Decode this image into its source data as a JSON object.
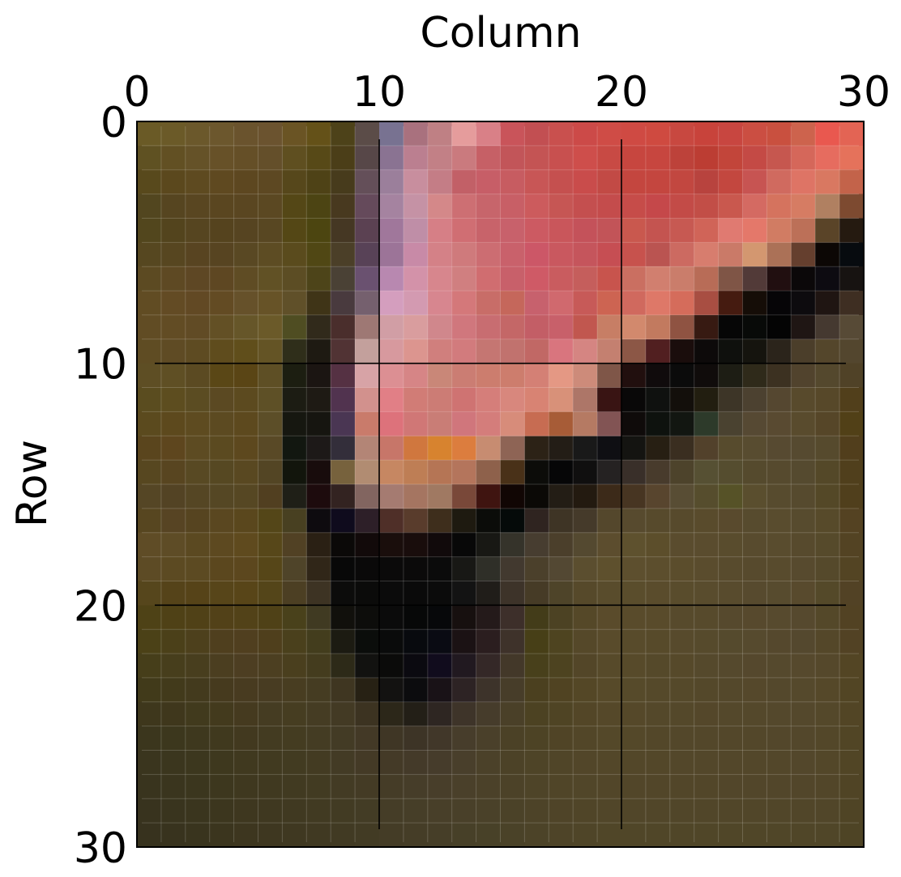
{
  "chart_data": {
    "type": "heatmap",
    "title": "",
    "xlabel": "Column",
    "ylabel": "Row",
    "x_axis_position": "top",
    "xlim": [
      0,
      30
    ],
    "ylim": [
      30,
      0
    ],
    "xticks": [
      0,
      10,
      20,
      30
    ],
    "yticks": [
      0,
      10,
      20,
      30
    ],
    "grid": true,
    "grid_color": "#000000",
    "minor_grid_step": 1,
    "major_grid_step": 10,
    "rows": 30,
    "cols": 30,
    "colors": [
      [
        "#6a5a26",
        "#6b5a28",
        "#6b582b",
        "#6c572d",
        "#6a532d",
        "#6b532f",
        "#6a5424",
        "#645118",
        "#4d4219",
        "#5b4c48",
        "#787291",
        "#a9717e",
        "#bf8084",
        "#e59c9c",
        "#d98087",
        "#c9545a",
        "#c24f52",
        "#c9504e",
        "#cc4a48",
        "#cf4c46",
        "#cf4a43",
        "#cf4a40",
        "#c84840",
        "#c8433b",
        "#c84640",
        "#cb4e42",
        "#c9503f",
        "#cd634d",
        "#e9584f",
        "#e36454"
      ],
      [
        "#5f5122",
        "#625023",
        "#655228",
        "#675128",
        "#654f27",
        "#644f2a",
        "#5f4f20",
        "#574917",
        "#4b3e18",
        "#574748",
        "#8a7392",
        "#bb7f90",
        "#c28086",
        "#ca7a7e",
        "#c66066",
        "#c25559",
        "#c45454",
        "#c8504f",
        "#ce4e4b",
        "#c84a44",
        "#c7463f",
        "#c7463f",
        "#bd423a",
        "#bc3d33",
        "#c2453a",
        "#c44a45",
        "#c6574f",
        "#d5675a",
        "#e66c5f",
        "#e5725b"
      ],
      [
        "#58491c",
        "#5b481d",
        "#5e4a20",
        "#5f4920",
        "#5d4720",
        "#5d4822",
        "#56471b",
        "#4e4216",
        "#473b1c",
        "#644f59",
        "#9b7f9b",
        "#c88e9e",
        "#c47d86",
        "#c26067",
        "#c75e67",
        "#c75c61",
        "#c85656",
        "#c5504f",
        "#c94c4b",
        "#c24a45",
        "#c4463f",
        "#c4463f",
        "#c24740",
        "#b8433e",
        "#c3473f",
        "#c75452",
        "#d06a5f",
        "#de7465",
        "#d97861",
        "#c3634a"
      ],
      [
        "#52461f",
        "#564520",
        "#594621",
        "#5a4620",
        "#5a4621",
        "#5b4822",
        "#544716",
        "#4c4413",
        "#48391f",
        "#654a5b",
        "#a583a0",
        "#c592a5",
        "#d48889",
        "#cd6f73",
        "#c7656b",
        "#c85f66",
        "#cc5b5d",
        "#c65654",
        "#c44f4f",
        "#c44c4c",
        "#c64c49",
        "#c5484a",
        "#c34b47",
        "#c24e47",
        "#c9584e",
        "#d46a62",
        "#d5735e",
        "#d67c63",
        "#b08061",
        "#7d4a30"
      ],
      [
        "#52461d",
        "#53441d",
        "#564520",
        "#55431e",
        "#564421",
        "#584722",
        "#544715",
        "#4c4510",
        "#453723",
        "#5b4152",
        "#a0779b",
        "#bf8ea7",
        "#d67f86",
        "#d06e73",
        "#c8636a",
        "#c8616b",
        "#cc5a62",
        "#c9565b",
        "#c4525a",
        "#c25458",
        "#c9584e",
        "#c45450",
        "#c75952",
        "#d06458",
        "#e07a71",
        "#e4786a",
        "#d17c63",
        "#bc7058",
        "#5a4428",
        "#251a10"
      ],
      [
        "#564720",
        "#574620",
        "#584421",
        "#574421",
        "#594823",
        "#5d4c23",
        "#5a4b1d",
        "#504714",
        "#4b3f28",
        "#584257",
        "#9c7498",
        "#c88aa7",
        "#d48187",
        "#cf7a7c",
        "#cc6d72",
        "#c9616b",
        "#cc5767",
        "#c9585f",
        "#c5555c",
        "#c64e53",
        "#c7524d",
        "#ba5451",
        "#cc6a61",
        "#d77d6e",
        "#ca7a68",
        "#d39770",
        "#ab7157",
        "#653f2e",
        "#0c0705",
        "#070b0f"
      ],
      [
        "#5c4a22",
        "#5e4923",
        "#5e4724",
        "#5e4722",
        "#5f4c24",
        "#615125",
        "#5c4d24",
        "#4d4419",
        "#4a4135",
        "#6a5170",
        "#b888b0",
        "#d392a9",
        "#d7868d",
        "#d07f80",
        "#d06d70",
        "#c8606a",
        "#cf5a66",
        "#c95c5f",
        "#c55e5c",
        "#c8544d",
        "#ca6f61",
        "#d17f6f",
        "#ca7d6b",
        "#b86c57",
        "#7f5546",
        "#523a38",
        "#210f10",
        "#0b0809",
        "#0d0b11",
        "#171311"
      ],
      [
        "#614c23",
        "#634b24",
        "#624924",
        "#634b23",
        "#66512a",
        "#675327",
        "#605029",
        "#3f3417",
        "#493a3e",
        "#75606e",
        "#d49ebe",
        "#d39ab1",
        "#d7868f",
        "#d4787a",
        "#c86d68",
        "#c5675b",
        "#c7616d",
        "#d0696e",
        "#c75a58",
        "#cd6452",
        "#d0695e",
        "#de7868",
        "#d56c5b",
        "#a84e42",
        "#451b10",
        "#150d07",
        "#060507",
        "#0d0b0e",
        "#1f1512",
        "#3e2e22"
      ],
      [
        "#614c24",
        "#624c24",
        "#614b25",
        "#635025",
        "#665629",
        "#6b5a29",
        "#4f4d22",
        "#312a1b",
        "#4a2e2c",
        "#9e7874",
        "#d19ea5",
        "#d99d9e",
        "#d0878c",
        "#d0777d",
        "#c86d71",
        "#c46767",
        "#c35e66",
        "#c8606a",
        "#c1574f",
        "#c77e65",
        "#d2896d",
        "#c27a5f",
        "#8f5342",
        "#371a12",
        "#060606",
        "#080a08",
        "#040404",
        "#1f1614",
        "#453930",
        "#574a36"
      ],
      [
        "#5f4c23",
        "#5f4b24",
        "#5e4b22",
        "#5f4c1d",
        "#604e1b",
        "#645425",
        "#2f2e1a",
        "#1e1a12",
        "#513334",
        "#c3a09c",
        "#d7999e",
        "#dc958f",
        "#d07f7d",
        "#d27b7d",
        "#c57672",
        "#c1726e",
        "#c16865",
        "#d9757e",
        "#d58582",
        "#c48070",
        "#8c5746",
        "#511f20",
        "#1a0d0c",
        "#0d0a0a",
        "#0f100d",
        "#15140e",
        "#2b241b",
        "#4b3e2a",
        "#54462b",
        "#53462e"
      ],
      [
        "#5e4e24",
        "#5f4f24",
        "#5b4a22",
        "#5a4716",
        "#5a4515",
        "#5e4f25",
        "#1c1e11",
        "#1b1512",
        "#553143",
        "#d7a3a6",
        "#dc8f93",
        "#d68586",
        "#c98778",
        "#cb7d73",
        "#cc7d6e",
        "#cd7d6d",
        "#d48075",
        "#e49884",
        "#cd8b7a",
        "#7f5648",
        "#210f0e",
        "#100b0c",
        "#0b0b0b",
        "#100c0b",
        "#1d1d14",
        "#2f2a1a",
        "#3c3121",
        "#51432d",
        "#54482d",
        "#504227"
      ],
      [
        "#5a4c1f",
        "#5d4d1f",
        "#5b4c22",
        "#5b4922",
        "#5c4a1f",
        "#5e5026",
        "#1c1c13",
        "#1e1a14",
        "#51334f",
        "#d2918d",
        "#e17f86",
        "#d17c76",
        "#cc7c75",
        "#cf7372",
        "#d57e7a",
        "#d8877d",
        "#d88373",
        "#d89179",
        "#ad7668",
        "#391413",
        "#090808",
        "#0f110f",
        "#130f0b",
        "#221e10",
        "#3d3527",
        "#4c4130",
        "#554730",
        "#584a2c",
        "#574829",
        "#513f1b"
      ],
      [
        "#5b4a1e",
        "#5d491d",
        "#5e4b20",
        "#5c4a21",
        "#5d491e",
        "#5c4e28",
        "#161710",
        "#161510",
        "#4a3653",
        "#c97b6b",
        "#dd727b",
        "#d07776",
        "#c97d76",
        "#d0767c",
        "#d47d7b",
        "#d78c7a",
        "#c76c52",
        "#a75c37",
        "#b57a63",
        "#825454",
        "#0f0b0a",
        "#0e120e",
        "#121611",
        "#2d3a2a",
        "#4a4230",
        "#564933",
        "#594a31",
        "#594b2d",
        "#564628",
        "#514017"
      ],
      [
        "#5a451d",
        "#5e461e",
        "#5d4b22",
        "#5b4a20",
        "#5d481e",
        "#594926",
        "#121710",
        "#1d1918",
        "#332e3a",
        "#b38576",
        "#c77669",
        "#d0773e",
        "#d7832f",
        "#dc7d3e",
        "#c78c71",
        "#8e6455",
        "#2c2216",
        "#231d16",
        "#191919",
        "#0f0f13",
        "#141411",
        "#271f13",
        "#3a2e20",
        "#52412b",
        "#574b2d",
        "#584c30",
        "#574a31",
        "#564a30",
        "#564a2d",
        "#513e1c"
      ],
      [
        "#574720",
        "#584520",
        "#584923",
        "#564822",
        "#594821",
        "#534524",
        "#12150c",
        "#180c0c",
        "#77623d",
        "#b18c72",
        "#c68762",
        "#be7e55",
        "#b57555",
        "#b4755c",
        "#8e614b",
        "#493118",
        "#0c0c09",
        "#060607",
        "#100f0f",
        "#252222",
        "#392f29",
        "#483b2c",
        "#4d432b",
        "#565033",
        "#554d2f",
        "#554a2d",
        "#564a2e",
        "#554a2f",
        "#544828",
        "#503f1c"
      ],
      [
        "#554625",
        "#534324",
        "#554624",
        "#554724",
        "#564723",
        "#513f20",
        "#1f1f17",
        "#1d0b0d",
        "#332321",
        "#826560",
        "#a57b71",
        "#a57561",
        "#a07962",
        "#794839",
        "#3f1410",
        "#110604",
        "#0b0906",
        "#231d15",
        "#231a10",
        "#3c2a19",
        "#473522",
        "#58452e",
        "#584d34",
        "#564d2d",
        "#565227",
        "#5a4e2e",
        "#574b2e",
        "#564a2e",
        "#544827",
        "#503f1c"
      ],
      [
        "#574620",
        "#574423",
        "#564420",
        "#5a4720",
        "#5a471d",
        "#544618",
        "#484021",
        "#0e0b0f",
        "#0f0b1d",
        "#2d1f28",
        "#4f2f28",
        "#593c2c",
        "#3e2e1c",
        "#1e1a10",
        "#0b0c09",
        "#050a09",
        "#2f2420",
        "#3e3425",
        "#453a2a",
        "#54472c",
        "#574a2e",
        "#574a2c",
        "#574a2c",
        "#594b2c",
        "#594a2d",
        "#574b2e",
        "#594c2e",
        "#574b2e",
        "#574a2a",
        "#544222"
      ],
      [
        "#5f4c26",
        "#5e4c26",
        "#5b4921",
        "#5d4920",
        "#5f4a1e",
        "#574719",
        "#514124",
        "#2a2014",
        "#0b0908",
        "#120a0a",
        "#1a0e0c",
        "#190d0c",
        "#110a0b",
        "#080808",
        "#181814",
        "#35332a",
        "#473d30",
        "#4b3f2b",
        "#544930",
        "#5c4d2e",
        "#5e512e",
        "#5c4e2b",
        "#5a4c2e",
        "#5a4c2e",
        "#594c2d",
        "#584b2e",
        "#594c2e",
        "#574a2d",
        "#564a2b",
        "#534323"
      ],
      [
        "#5d4b25",
        "#5c4a22",
        "#5c4a22",
        "#5b471e",
        "#5c471e",
        "#564618",
        "#4f4429",
        "#302618",
        "#080808",
        "#0a0909",
        "#0b0a0a",
        "#0b0a0a",
        "#0b0b0b",
        "#181815",
        "#2f2f28",
        "#42392f",
        "#4b402b",
        "#534833",
        "#5b4e2f",
        "#5e502d",
        "#5d4f2e",
        "#5c4e2d",
        "#5b4d2c",
        "#5a4c2d",
        "#584b2d",
        "#574a2d",
        "#584b2d",
        "#574a2e",
        "#55492b",
        "#534423"
      ],
      [
        "#56461c",
        "#554319",
        "#564318",
        "#574519",
        "#584518",
        "#544519",
        "#4c3f23",
        "#3d3323",
        "#0c0c0b",
        "#0b0b0a",
        "#0b0b0b",
        "#0a0a0a",
        "#0b0b0b",
        "#131313",
        "#201d19",
        "#3d3329",
        "#463b26",
        "#4e4429",
        "#56492a",
        "#594c2c",
        "#5a4d2c",
        "#5a4c2c",
        "#594c2c",
        "#594c2d",
        "#584b2d",
        "#574a2e",
        "#574b2e",
        "#584a2d",
        "#544929",
        "#524225"
      ],
      [
        "#4e4216",
        "#4f4116",
        "#504117",
        "#524118",
        "#524218",
        "#4f4117",
        "#49411b",
        "#403a22",
        "#11100c",
        "#0d0d0b",
        "#0b0b0b",
        "#070808",
        "#07080a",
        "#17100f",
        "#241a1a",
        "#3d2f2a",
        "#433c19",
        "#4c4223",
        "#554828",
        "#5a4b2b",
        "#594b2b",
        "#594b2b",
        "#574a2c",
        "#574a2c",
        "#56492d",
        "#57492d",
        "#574a2e",
        "#56492e",
        "#544829",
        "#524223"
      ],
      [
        "#4b4117",
        "#4b4019",
        "#4d401c",
        "#4f3f1e",
        "#503f1f",
        "#4f3f1c",
        "#4a401c",
        "#433d1d",
        "#1c1b12",
        "#0b0d0b",
        "#0a0b0b",
        "#080a0e",
        "#0a0b13",
        "#1b1214",
        "#2b1e1f",
        "#3e322a",
        "#473f17",
        "#4e4420",
        "#554829",
        "#594b2b",
        "#584b2b",
        "#574a2a",
        "#574a2c",
        "#564a2c",
        "#554a2d",
        "#564a2e",
        "#55482d",
        "#54482e",
        "#544729",
        "#524224"
      ],
      [
        "#463e1a",
        "#473e1c",
        "#483e1e",
        "#4b3e20",
        "#4d3e22",
        "#4c3f21",
        "#4a3f1e",
        "#443c1e",
        "#2d2a18",
        "#121210",
        "#0b0b0a",
        "#0b0a10",
        "#110c1d",
        "#211920",
        "#342827",
        "#433829",
        "#48401b",
        "#4d4320",
        "#534628",
        "#574a2a",
        "#574a2a",
        "#55492a",
        "#56492a",
        "#55492c",
        "#55492d",
        "#55482d",
        "#55492d",
        "#56492d",
        "#55482b",
        "#534524"
      ],
      [
        "#413a1a",
        "#423a1b",
        "#433a1d",
        "#463a1e",
        "#483b20",
        "#483c22",
        "#483d21",
        "#453c22",
        "#3f3621",
        "#272114",
        "#131211",
        "#0c0c0e",
        "#191217",
        "#2d2324",
        "#3d332a",
        "#473d29",
        "#4b401f",
        "#504322",
        "#544726",
        "#574a29",
        "#564a2a",
        "#55492a",
        "#55492a",
        "#54482a",
        "#54482b",
        "#55482b",
        "#54482c",
        "#55492c",
        "#554829",
        "#524524"
      ],
      [
        "#3e371c",
        "#3f371c",
        "#413a1d",
        "#433a1d",
        "#453a1f",
        "#453c22",
        "#463d21",
        "#453c23",
        "#433a24",
        "#3c3321",
        "#2c2719",
        "#231f17",
        "#2e2622",
        "#3e3429",
        "#463c2b",
        "#4a4028",
        "#4c4222",
        "#4f4424",
        "#534627",
        "#554829",
        "#554829",
        "#54482a",
        "#54482a",
        "#54472a",
        "#54482b",
        "#54482b",
        "#54482c",
        "#54482c",
        "#54482a",
        "#524525"
      ],
      [
        "#3b361d",
        "#3c371d",
        "#3e381e",
        "#40391e",
        "#42391f",
        "#433b21",
        "#443c21",
        "#443c23",
        "#433b25",
        "#433926",
        "#3f3625",
        "#3d3426",
        "#413729",
        "#473d2b",
        "#4a402a",
        "#4b4126",
        "#4d4325",
        "#504426",
        "#524628",
        "#544829",
        "#544829",
        "#534729",
        "#53472a",
        "#53472a",
        "#53472a",
        "#53472a",
        "#53472b",
        "#53472b",
        "#534729",
        "#514525"
      ],
      [
        "#3a351e",
        "#3b361e",
        "#3c371e",
        "#3e381e",
        "#40391f",
        "#413a20",
        "#423b21",
        "#433b22",
        "#433b25",
        "#443a26",
        "#443a27",
        "#443a29",
        "#463c2b",
        "#493f2b",
        "#4b4129",
        "#4c4227",
        "#4e4427",
        "#504528",
        "#524629",
        "#534729",
        "#534729",
        "#534729",
        "#53472a",
        "#53472a",
        "#53472a",
        "#53472a",
        "#53472a",
        "#53472b",
        "#534729",
        "#514525"
      ],
      [
        "#39341e",
        "#3a351e",
        "#3b361e",
        "#3d371e",
        "#3f381f",
        "#403920",
        "#413a21",
        "#423b22",
        "#433b24",
        "#443b25",
        "#453c27",
        "#463d29",
        "#483e2a",
        "#4a402a",
        "#4b4129",
        "#4c4228",
        "#4e4428",
        "#504528",
        "#514629",
        "#524629",
        "#524629",
        "#524629",
        "#524629",
        "#524629",
        "#52462a",
        "#52462a",
        "#52462a",
        "#52462a",
        "#524629",
        "#504425"
      ],
      [
        "#38331e",
        "#39341e",
        "#3a351e",
        "#3c361e",
        "#3e371f",
        "#3f3820",
        "#403921",
        "#413a22",
        "#423b23",
        "#433c25",
        "#453d27",
        "#463e28",
        "#483f29",
        "#494029",
        "#4a4129",
        "#4b4228",
        "#4d4328",
        "#4f4428",
        "#504528",
        "#514629",
        "#514629",
        "#514629",
        "#514629",
        "#514629",
        "#514629",
        "#514629",
        "#514629",
        "#514629",
        "#514629",
        "#4f4425"
      ],
      [
        "#37321e",
        "#38331e",
        "#39341e",
        "#3b351e",
        "#3d361f",
        "#3e3720",
        "#3f3821",
        "#403922",
        "#413a23",
        "#423b24",
        "#443c26",
        "#453d27",
        "#463e28",
        "#474028",
        "#484128",
        "#4a4228",
        "#4c4328",
        "#4e4428",
        "#4f4528",
        "#504628",
        "#504628",
        "#504628",
        "#504628",
        "#504628",
        "#504628",
        "#504628",
        "#504628",
        "#504628",
        "#504628",
        "#4e4425"
      ]
    ]
  }
}
